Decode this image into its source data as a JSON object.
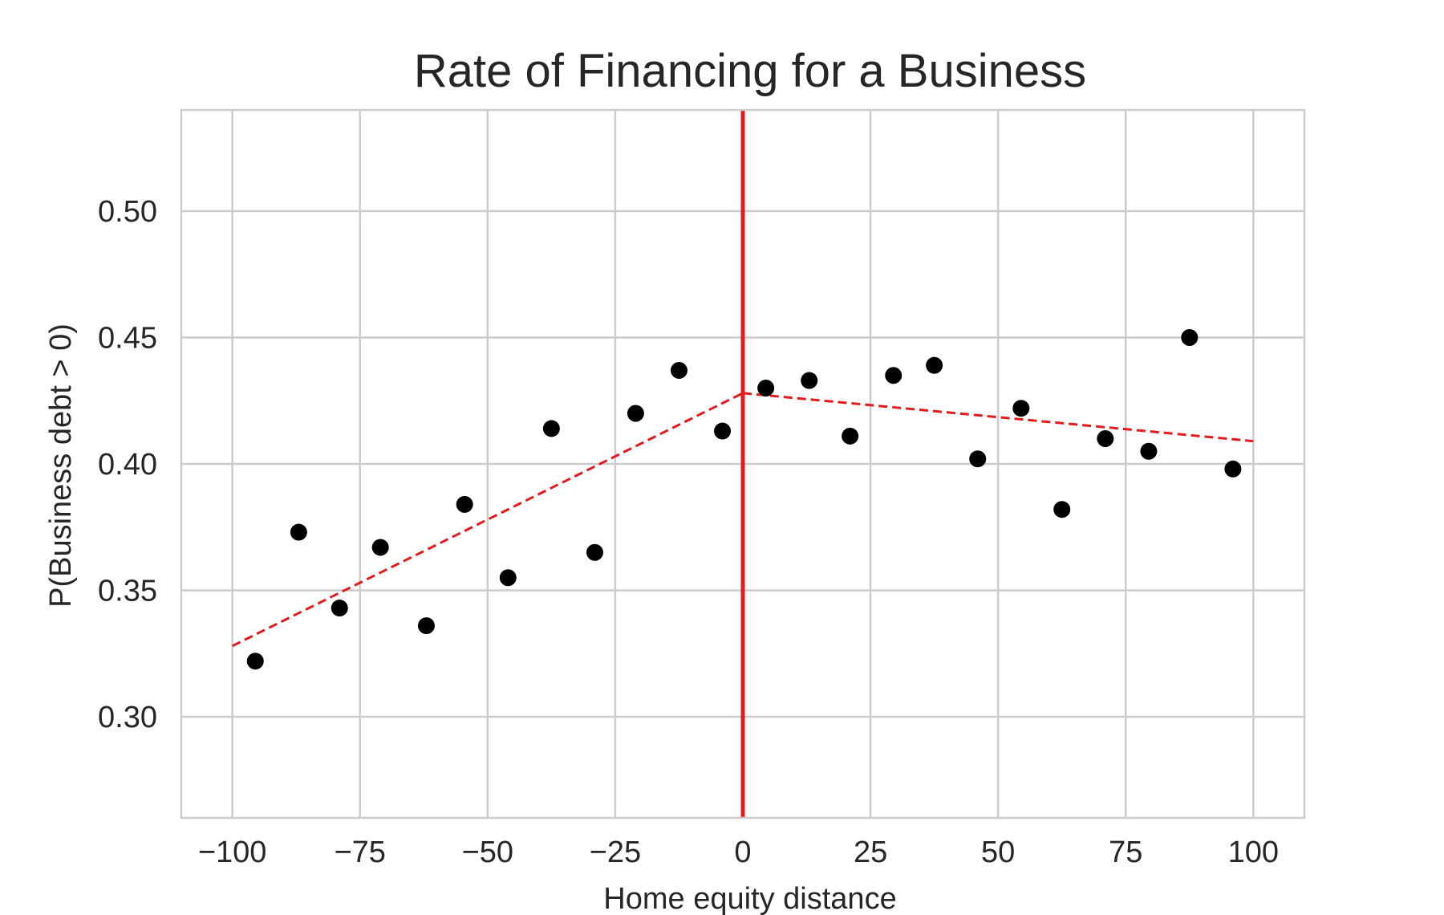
{
  "chart_data": {
    "type": "scatter",
    "title": "Rate of Financing for a Business",
    "xlabel": "Home equity distance",
    "ylabel": "P(Business debt > 0)",
    "xlim": [
      -110,
      110
    ],
    "ylim": [
      0.26,
      0.54
    ],
    "xticks": [
      -100,
      -75,
      -50,
      -25,
      0,
      25,
      50,
      75,
      100
    ],
    "xtick_labels": [
      "−100",
      "−75",
      "−50",
      "−25",
      "0",
      "25",
      "50",
      "75",
      "100"
    ],
    "yticks": [
      0.3,
      0.35,
      0.4,
      0.45,
      0.5
    ],
    "ytick_labels": [
      "0.30",
      "0.35",
      "0.40",
      "0.45",
      "0.50"
    ],
    "grid": true,
    "series": [
      {
        "points": [
          {
            "x": -95.5,
            "y": 0.322
          },
          {
            "x": -87.0,
            "y": 0.373
          },
          {
            "x": -79.0,
            "y": 0.343
          },
          {
            "x": -71.0,
            "y": 0.367
          },
          {
            "x": -62.0,
            "y": 0.336
          },
          {
            "x": -54.5,
            "y": 0.384
          },
          {
            "x": -46.0,
            "y": 0.355
          },
          {
            "x": -37.5,
            "y": 0.414
          },
          {
            "x": -29.0,
            "y": 0.365
          },
          {
            "x": -21.0,
            "y": 0.42
          },
          {
            "x": -12.5,
            "y": 0.437
          },
          {
            "x": -4.0,
            "y": 0.413
          },
          {
            "x": 4.5,
            "y": 0.43
          },
          {
            "x": 13.0,
            "y": 0.433
          },
          {
            "x": 21.0,
            "y": 0.411
          },
          {
            "x": 29.5,
            "y": 0.435
          },
          {
            "x": 37.5,
            "y": 0.439
          },
          {
            "x": 46.0,
            "y": 0.402
          },
          {
            "x": 54.5,
            "y": 0.422
          },
          {
            "x": 62.5,
            "y": 0.382
          },
          {
            "x": 71.0,
            "y": 0.41
          },
          {
            "x": 79.5,
            "y": 0.405
          },
          {
            "x": 87.5,
            "y": 0.45
          },
          {
            "x": 96.0,
            "y": 0.398
          }
        ],
        "color": "#000000"
      }
    ],
    "fit_lines": [
      {
        "x": [
          -100,
          0
        ],
        "y": [
          0.328,
          0.428
        ],
        "color": "#e31a1c",
        "style": "dashed"
      },
      {
        "x": [
          0,
          100
        ],
        "y": [
          0.428,
          0.409
        ],
        "color": "#e31a1c",
        "style": "dashed"
      }
    ],
    "cutoff_line": {
      "x": 0,
      "color": "#e8191c"
    },
    "colors": {
      "grid": "#cccccc",
      "frame": "#cccccc",
      "points": "#000000",
      "text": "#262626"
    }
  }
}
